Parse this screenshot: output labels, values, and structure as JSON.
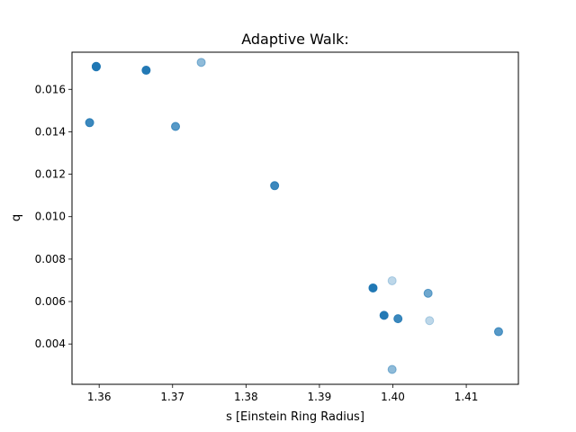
{
  "chart_data": {
    "type": "scatter",
    "title": "Adaptive Walk:",
    "xlabel": "s [Einstein Ring Radius]",
    "ylabel": "q",
    "xlim": [
      1.3563,
      1.4171
    ],
    "ylim": [
      0.0021,
      0.01775
    ],
    "xticks": [
      1.36,
      1.37,
      1.38,
      1.39,
      1.4,
      1.41
    ],
    "xtick_labels": [
      "1.36",
      "1.37",
      "1.38",
      "1.39",
      "1.40",
      "1.41"
    ],
    "yticks": [
      0.004,
      0.006,
      0.008,
      0.01,
      0.012,
      0.014,
      0.016
    ],
    "ytick_labels": [
      "0.004",
      "0.006",
      "0.008",
      "0.010",
      "0.012",
      "0.014",
      "0.016"
    ],
    "grid": false,
    "legend": null,
    "marker_color": "#1f77b4",
    "points": [
      {
        "x": 1.3596,
        "y": 0.01708,
        "weight": 8
      },
      {
        "x": 1.3596,
        "y": 0.01706,
        "weight": 4
      },
      {
        "x": 1.3664,
        "y": 0.0169,
        "weight": 6
      },
      {
        "x": 1.3739,
        "y": 0.01727,
        "weight": 1
      },
      {
        "x": 1.3587,
        "y": 0.01443,
        "weight": 3
      },
      {
        "x": 1.3704,
        "y": 0.01425,
        "weight": 2
      },
      {
        "x": 1.3839,
        "y": 0.01146,
        "weight": 3
      },
      {
        "x": 1.3973,
        "y": 0.00664,
        "weight": 8
      },
      {
        "x": 1.3999,
        "y": 0.00698,
        "weight": 0.5
      },
      {
        "x": 1.4048,
        "y": 0.00639,
        "weight": 1.5
      },
      {
        "x": 1.3988,
        "y": 0.00535,
        "weight": 6
      },
      {
        "x": 1.4007,
        "y": 0.00519,
        "weight": 3
      },
      {
        "x": 1.405,
        "y": 0.0051,
        "weight": 0.5
      },
      {
        "x": 1.4144,
        "y": 0.00458,
        "weight": 2
      },
      {
        "x": 1.3999,
        "y": 0.0028,
        "weight": 1
      }
    ]
  }
}
